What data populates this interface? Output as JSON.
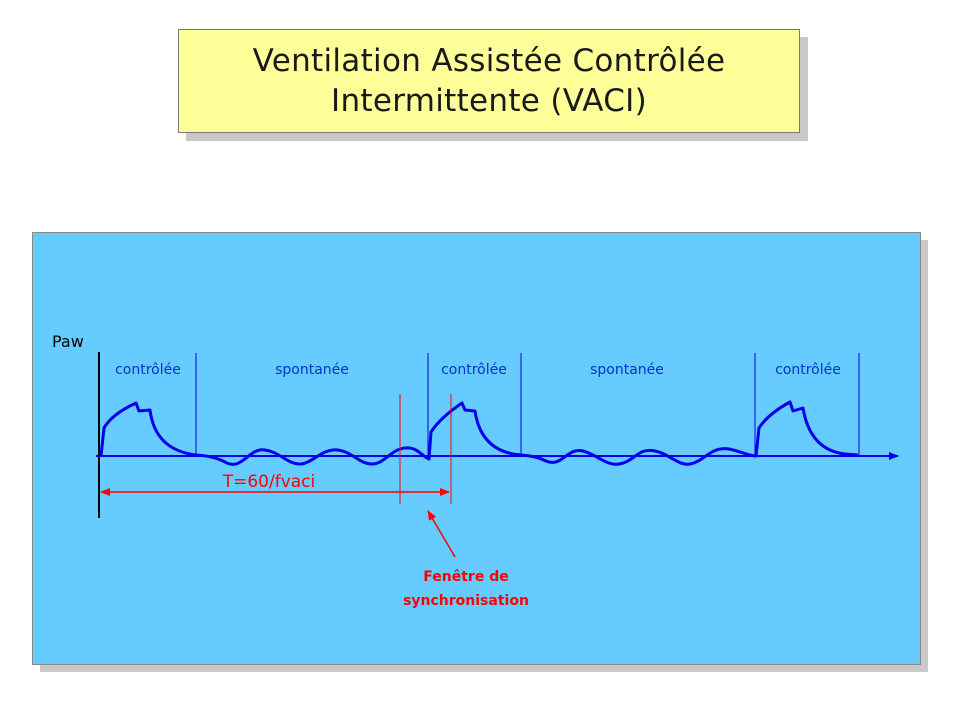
{
  "title": {
    "line1": "Ventilation Assistée Contrôlée",
    "line2": "Intermittente (VACI)"
  },
  "diagram": {
    "y_axis_label": "Paw",
    "phase_labels": [
      "contrôlée",
      "spontanée",
      "contrôlée",
      "spontanée",
      "contrôlée"
    ],
    "period_label": "T=60/fvaci",
    "window_label_line1": "Fenêtre de",
    "window_label_line2": "synchronisation",
    "colors": {
      "panel": "#66ccff",
      "title_box": "#ffff99",
      "waveform": "#0000ee",
      "annotation": "#ff0000",
      "phase_text": "#0033cc",
      "axis": "#000000"
    }
  }
}
